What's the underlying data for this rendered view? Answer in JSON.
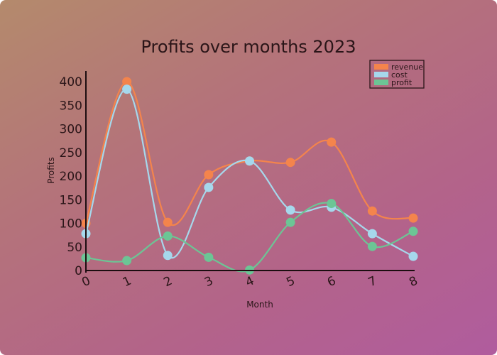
{
  "chart_data": {
    "type": "line",
    "title": "Profits over months 2023",
    "xlabel": "Month",
    "ylabel": "Profits",
    "x": [
      0,
      1,
      2,
      3,
      4,
      5,
      6,
      7,
      8
    ],
    "xticks": [
      "0",
      "1",
      "2",
      "3",
      "4",
      "5",
      "6",
      "7",
      "8"
    ],
    "yticks": [
      "0",
      "50",
      "100",
      "150",
      "200",
      "250",
      "300",
      "350",
      "400"
    ],
    "ylim": [
      0,
      400
    ],
    "xlim": [
      0,
      8
    ],
    "grid": false,
    "legend_position": "upper right",
    "style": "hand-drawn (xkcd-like), smoothed curves with markers",
    "series": [
      {
        "name": "revenue",
        "color": "#f4844c",
        "values": [
          100,
          400,
          102,
          203,
          232,
          229,
          272,
          126,
          111
        ]
      },
      {
        "name": "cost",
        "color": "#a6d8ec",
        "values": [
          78,
          384,
          32,
          176,
          232,
          128,
          134,
          78,
          30
        ]
      },
      {
        "name": "profit",
        "color": "#6cc595",
        "values": [
          27,
          21,
          73,
          28,
          1,
          102,
          142,
          51,
          83
        ]
      }
    ]
  }
}
